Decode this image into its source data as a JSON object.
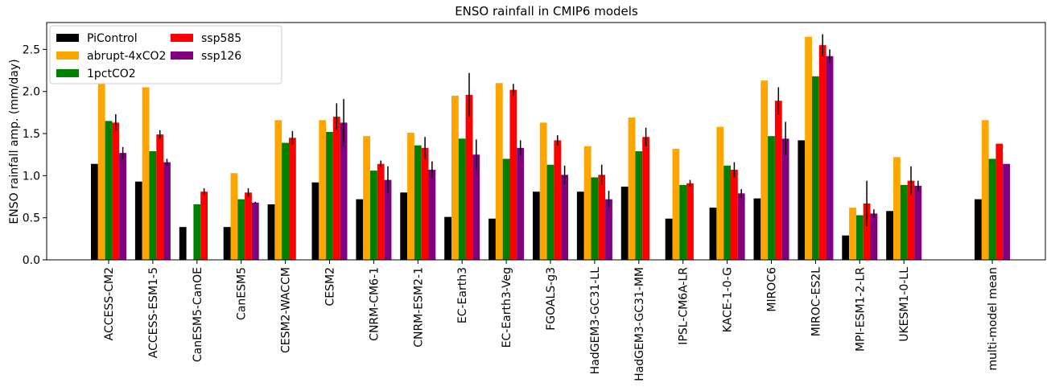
{
  "chart_data": {
    "type": "bar",
    "title": "ENSO rainfall in CMIP6 models",
    "y_label": "ENSO rainfall amp. (mm/day)",
    "categories": [
      "ACCESS-CM2",
      "ACCESS-ESM1-5",
      "CanESM5-CanOE",
      "CanESM5",
      "CESM2-WACCM",
      "CESM2",
      "CNRM-CM6-1",
      "CNRM-ESM2-1",
      "EC-Earth3",
      "EC-Earth3-Veg",
      "FGOALS-g3",
      "HadGEM3-GC31-LL",
      "HadGEM3-GC31-MM",
      "IPSL-CM6A-LR",
      "KACE-1-0-G",
      "MIROC6",
      "MIROC-ES2L",
      "MPI-ESM1-2-LR",
      "UKESM1-0-LL",
      null,
      "multi-model mean"
    ],
    "series": [
      {
        "name": "PiControl",
        "color": "#000000",
        "values": [
          1.14,
          0.93,
          0.39,
          0.39,
          0.66,
          0.92,
          0.72,
          0.8,
          0.51,
          0.49,
          0.81,
          0.81,
          0.87,
          0.49,
          0.62,
          0.73,
          1.42,
          0.29,
          0.58,
          null,
          0.72
        ]
      },
      {
        "name": "abrupt-4xCO2",
        "color": "#ffa500",
        "values": [
          2.13,
          2.05,
          null,
          1.03,
          1.66,
          1.66,
          1.47,
          1.51,
          1.95,
          2.1,
          1.63,
          1.35,
          1.69,
          1.32,
          1.58,
          2.13,
          2.65,
          0.62,
          1.22,
          null,
          1.66
        ]
      },
      {
        "name": "1pctCO2",
        "color": "#008000",
        "values": [
          1.65,
          1.29,
          0.66,
          0.72,
          1.39,
          1.52,
          1.06,
          1.36,
          1.44,
          1.2,
          1.13,
          0.98,
          1.29,
          0.89,
          1.12,
          1.47,
          2.18,
          0.53,
          0.89,
          null,
          1.2
        ]
      },
      {
        "name": "ssp585",
        "color": "#ff0000",
        "values": [
          1.63,
          1.49,
          0.81,
          0.8,
          1.45,
          1.7,
          1.14,
          1.33,
          1.96,
          2.02,
          1.42,
          1.01,
          1.46,
          0.91,
          1.07,
          1.89,
          2.55,
          0.67,
          0.94,
          null,
          1.38
        ],
        "errors": [
          0.1,
          0.05,
          0.04,
          0.05,
          0.08,
          0.16,
          0.04,
          0.13,
          0.26,
          0.07,
          0.06,
          0.12,
          0.11,
          0.04,
          0.09,
          0.16,
          0.13,
          0.27,
          0.17,
          null,
          null
        ]
      },
      {
        "name": "ssp126",
        "color": "#800080",
        "values": [
          1.27,
          1.16,
          null,
          0.68,
          null,
          1.63,
          0.95,
          1.07,
          1.25,
          1.33,
          1.01,
          0.72,
          null,
          null,
          0.79,
          1.44,
          2.42,
          0.55,
          0.88,
          null,
          1.14
        ],
        "errors": [
          0.07,
          0.04,
          null,
          0.01,
          null,
          0.28,
          0.16,
          0.1,
          0.18,
          0.09,
          0.11,
          0.1,
          null,
          null,
          0.05,
          0.2,
          0.08,
          0.05,
          0.06,
          null,
          null
        ]
      }
    ],
    "ylim": [
      0,
      2.8
    ],
    "yticks": [
      {
        "value": 0,
        "label": "0.0"
      },
      0.5,
      {
        "value": 1,
        "label": "1.0"
      },
      1.5,
      {
        "value": 2,
        "label": "2.0"
      },
      2.5
    ],
    "legend": "upper left"
  }
}
